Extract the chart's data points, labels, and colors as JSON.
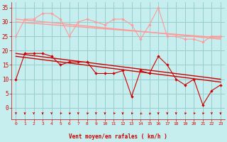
{
  "x": [
    0,
    1,
    2,
    3,
    4,
    5,
    6,
    7,
    8,
    9,
    10,
    11,
    12,
    13,
    14,
    15,
    16,
    17,
    18,
    19,
    20,
    21,
    22,
    23
  ],
  "vent_moyen": [
    10,
    19,
    19,
    19,
    18,
    15,
    16,
    16,
    16,
    12,
    12,
    12,
    13,
    4,
    13,
    12,
    18,
    15,
    10,
    8,
    10,
    1,
    6,
    8
  ],
  "rafales": [
    25,
    31,
    31,
    33,
    33,
    31,
    25,
    30,
    31,
    30,
    29,
    31,
    31,
    29,
    24,
    29,
    35,
    25,
    25,
    24,
    24,
    23,
    25,
    25
  ],
  "trend_moyen_explicit": [
    [
      0,
      18
    ],
    [
      23,
      9
    ]
  ],
  "trend_rafales_explicit": [
    [
      0,
      31
    ],
    [
      23,
      24
    ]
  ],
  "trend_moyen2_explicit": [
    [
      0,
      19
    ],
    [
      23,
      10
    ]
  ],
  "trend_rafales2_explicit": [
    [
      0,
      30
    ],
    [
      23,
      24.5
    ]
  ],
  "bg_color": "#c6eeee",
  "grid_color": "#99cccc",
  "line_color_moyen": "#cc0000",
  "line_color_rafales": "#ff9999",
  "xlabel": "Vent moyen/en rafales ( km/h )",
  "xlabel_color": "#cc0000",
  "tick_color": "#cc0000",
  "ylabel_ticks": [
    0,
    5,
    10,
    15,
    20,
    25,
    30,
    35
  ],
  "ylim": [
    -4,
    37
  ],
  "xlim": [
    -0.5,
    23.5
  ],
  "arrow_directions": [
    0,
    0,
    0,
    0,
    0,
    -15,
    -15,
    0,
    -15,
    0,
    0,
    -15,
    0,
    -15,
    -30,
    -30,
    0,
    0,
    0,
    -15,
    -15,
    -15,
    0,
    0
  ]
}
